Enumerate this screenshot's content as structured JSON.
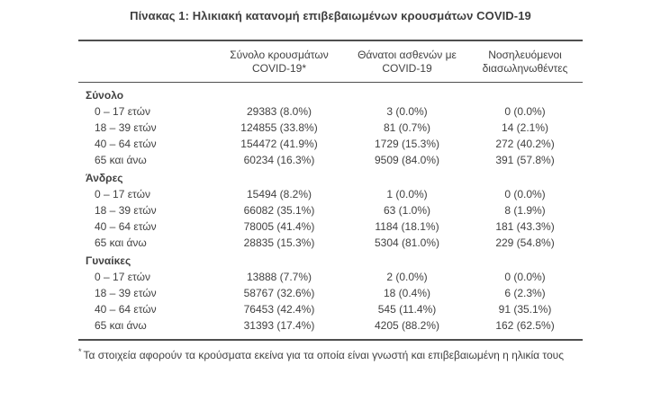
{
  "page": {
    "title": "Πίνακας 1: Ηλικιακή κατανομή επιβεβαιωμένων κρουσμάτων COVID-19"
  },
  "table": {
    "col_headers": [
      {
        "line1": "Σύνολο κρουσμάτων",
        "line2": "COVID-19*"
      },
      {
        "line1": "Θάνατοι ασθενών με",
        "line2": "COVID-19"
      },
      {
        "line1": "Νοσηλευόμενοι",
        "line2": "διασωληνωθέντες"
      }
    ],
    "sections": [
      {
        "label": "Σύνολο",
        "rows": [
          {
            "label": "0 – 17 ετών",
            "cases": "29383 (8.0%)",
            "deaths": "3 (0.0%)",
            "intubated": "0 (0.0%)"
          },
          {
            "label": "18 – 39 ετών",
            "cases": "124855 (33.8%)",
            "deaths": "81 (0.7%)",
            "intubated": "14 (2.1%)"
          },
          {
            "label": "40 – 64 ετών",
            "cases": "154472 (41.9%)",
            "deaths": "1729 (15.3%)",
            "intubated": "272 (40.2%)"
          },
          {
            "label": "65 και άνω",
            "cases": "60234 (16.3%)",
            "deaths": "9509 (84.0%)",
            "intubated": "391 (57.8%)"
          }
        ]
      },
      {
        "label": "Άνδρες",
        "rows": [
          {
            "label": "0 – 17 ετών",
            "cases": "15494 (8.2%)",
            "deaths": "1 (0.0%)",
            "intubated": "0 (0.0%)"
          },
          {
            "label": "18 – 39 ετών",
            "cases": "66082 (35.1%)",
            "deaths": "63 (1.0%)",
            "intubated": "8 (1.9%)"
          },
          {
            "label": "40 – 64 ετών",
            "cases": "78005 (41.4%)",
            "deaths": "1184 (18.1%)",
            "intubated": "181 (43.3%)"
          },
          {
            "label": "65 και άνω",
            "cases": "28835 (15.3%)",
            "deaths": "5304 (81.0%)",
            "intubated": "229 (54.8%)"
          }
        ]
      },
      {
        "label": "Γυναίκες",
        "rows": [
          {
            "label": "0 – 17 ετών",
            "cases": "13888 (7.7%)",
            "deaths": "2 (0.0%)",
            "intubated": "0 (0.0%)"
          },
          {
            "label": "18 – 39 ετών",
            "cases": "58767 (32.6%)",
            "deaths": "18 (0.4%)",
            "intubated": "6 (2.3%)"
          },
          {
            "label": "40 – 64 ετών",
            "cases": "76453 (42.4%)",
            "deaths": "545 (11.4%)",
            "intubated": "91 (35.1%)"
          },
          {
            "label": "65 και άνω",
            "cases": "31393 (17.4%)",
            "deaths": "4205 (88.2%)",
            "intubated": "162 (62.5%)"
          }
        ]
      }
    ],
    "footnote_marker": "*",
    "footnote": "Τα στοιχεία αφορούν τα κρούσματα εκείνα για τα οποία είναι γνωστή και επιβεβαιωμένη η ηλικία τους"
  }
}
